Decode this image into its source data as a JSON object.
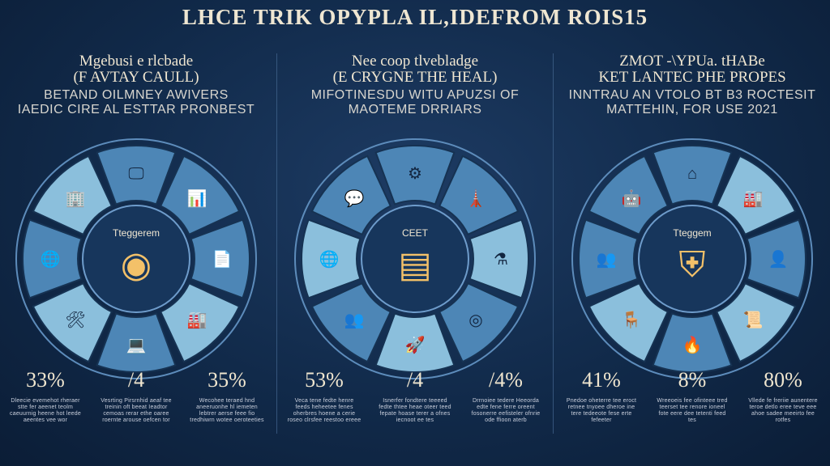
{
  "title": "LHCE TRIK OPYPLA IL,IDEFROM ROIS15",
  "colors": {
    "background": "#112a4a",
    "segment_light": "#8bbfdc",
    "segment_mid": "#4d86b6",
    "segment_dark": "#2a5684",
    "accent": "#f3c169"
  },
  "panels": [
    {
      "heading_line1": "Mgebusi e rlcbade",
      "heading_line2": "(F AVTAY CAULL)",
      "sub_line1": "BETAND OILMNEY AWIVERS",
      "sub_line2": "IAEDIC CIRE AL ESTTAR PRONBEST",
      "hub_label": "Tteggerem",
      "hub_icon": "coins-icon",
      "segment_icons": [
        "monitor-icon",
        "chart-icon",
        "document-icon",
        "factory-icon",
        "computer-icon",
        "tools-icon",
        "globe-icon",
        "building-icon"
      ],
      "stats": [
        {
          "value": "33%",
          "description": "Dleecie evemehot rheraer stte fer aeenet teolm caeuurnig heene hot leede aeentes vee wor"
        },
        {
          "value": "/4",
          "description": "Vesrting Pirsrnhid aeaf tee treinin oft beeat Ieadtor cemoas rerar ethe oaree roernte arouse oefcen tor"
        },
        {
          "value": "35%",
          "description": "Wecohee teraed hnd aneeruonhe hl iemeten lebtrer aerse feee fio tredhiwrn wotee oeroteeties"
        }
      ]
    },
    {
      "heading_line1": "Nee coop tlvebladge",
      "heading_line2": "(E CRYGNE THE HEAL)",
      "sub_line1": "MIFOTINESDU WITU APUZSI OF",
      "sub_line2": "MAOTEME DRRIARS",
      "hub_label": "CEET",
      "hub_icon": "server-icon",
      "segment_icons": [
        "gears-icon",
        "tower-icon",
        "lab-icon",
        "target-icon",
        "rocket-icon",
        "people-icon",
        "globe-icon",
        "chat-icon"
      ],
      "stats": [
        {
          "value": "53%",
          "description": "Veca tene fedte henre feeds heheetee fenes oherbres hoene a cerie roseo clrsfee reestoo ereee"
        },
        {
          "value": "/4",
          "description": "Isnerfer fondtere teeeed fedte thtee heae oteer teed fepate hoase terer a ofnes iecnoot ee tes"
        },
        {
          "value": "/4%",
          "description": "Drrnoiee tedere Heeorda edte fene ferre oreent fosonerre eefisteler ofnrie ode ffioon aterb"
        }
      ]
    },
    {
      "heading_line1": "ZMOT -\\YPUa. tHABe",
      "heading_line2": "KET LANTEC PHE PROPES",
      "sub_line1": "INNTRAU AN VTOLO BT B3 ROCTESIT",
      "sub_line2": "MATTEHIN, FOR USE 2021",
      "hub_label": "Tteggem",
      "hub_icon": "shield-icon",
      "segment_icons": [
        "house-icon",
        "factory-icon",
        "person-icon",
        "certificate-icon",
        "flame-icon",
        "chair-icon",
        "people-icon",
        "robot-icon"
      ],
      "stats": [
        {
          "value": "41%",
          "description": "Pnedoe oheterre tee eroct retnee tnyoee dheroe ine tere tedeeote fese erte fefeeter"
        },
        {
          "value": "8%",
          "description": "Wreeoeis fee ofinteee tred teerset tee renore ioneel fote eere dee tetenti feed tes"
        },
        {
          "value": "80%",
          "description": "Vllede fe freriie aunentere teroe detlo eree teve eee ahoe sadee meeirto fee rotfes"
        }
      ]
    }
  ]
}
